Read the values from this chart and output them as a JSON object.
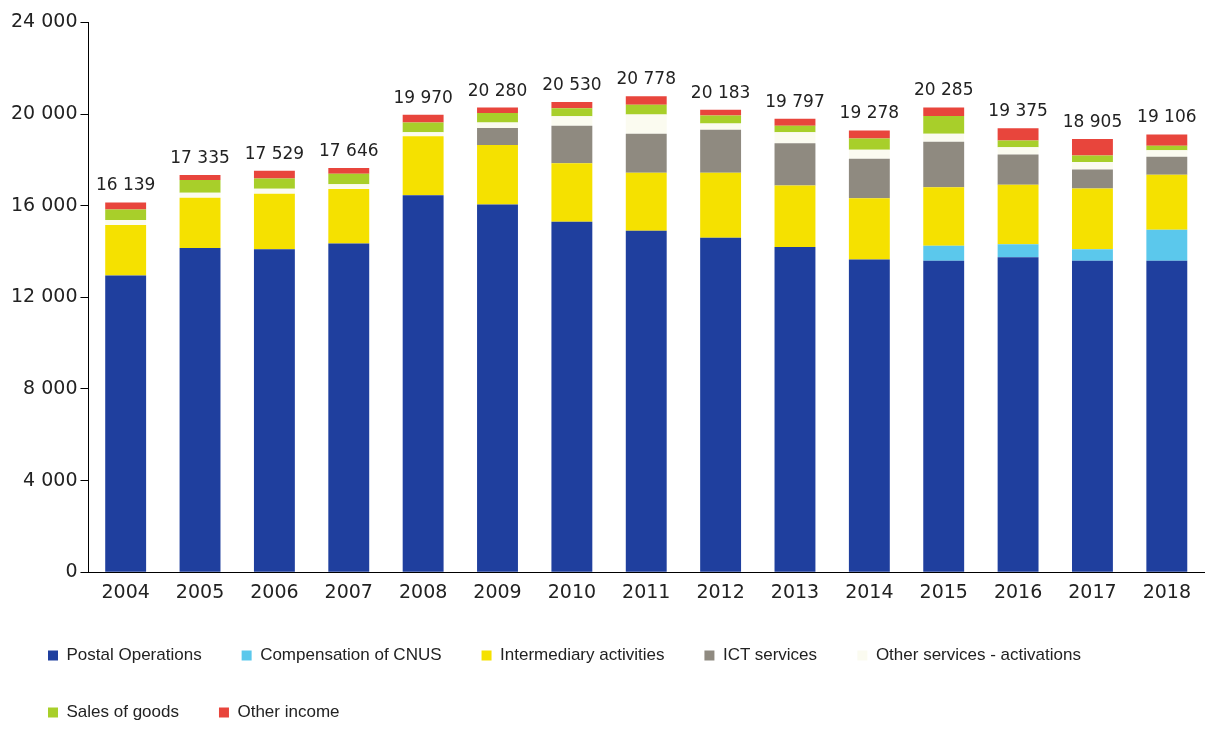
{
  "chart_data": {
    "type": "bar",
    "stacked": true,
    "categories": [
      "2004",
      "2005",
      "2006",
      "2007",
      "2008",
      "2009",
      "2010",
      "2011",
      "2012",
      "2013",
      "2014",
      "2015",
      "2016",
      "2017",
      "2018"
    ],
    "series": [
      {
        "name": "Postal Operations",
        "color": "#1f3f9e",
        "values": [
          12950,
          14150,
          14100,
          14350,
          16450,
          16050,
          15300,
          14900,
          14600,
          14200,
          13650,
          13600,
          13750,
          13600,
          13600
        ]
      },
      {
        "name": "Compensation of CNUS",
        "color": "#5bc8ec",
        "values": [
          0,
          0,
          0,
          0,
          0,
          0,
          0,
          0,
          0,
          0,
          0,
          650,
          570,
          500,
          1350
        ]
      },
      {
        "name": "Intermediary activities",
        "color": "#f5e100",
        "values": [
          2210,
          2200,
          2415,
          2375,
          2580,
          2600,
          2550,
          2540,
          2840,
          2680,
          2670,
          2550,
          2590,
          2650,
          2400
        ]
      },
      {
        "name": "ICT services",
        "color": "#8f8a80",
        "values": [
          0,
          0,
          0,
          0,
          0,
          740,
          1640,
          1700,
          1870,
          1840,
          1730,
          1990,
          1320,
          830,
          790
        ]
      },
      {
        "name": "Other services - activations",
        "color": "#fbfbf0",
        "values": [
          210,
          210,
          225,
          210,
          180,
          240,
          410,
          840,
          280,
          490,
          390,
          350,
          320,
          330,
          280
        ]
      },
      {
        "name": "Sales of goods",
        "color": "#a8cf2a",
        "values": [
          460,
          560,
          446,
          459,
          420,
          420,
          350,
          420,
          350,
          280,
          490,
          770,
          290,
          280,
          200
        ]
      },
      {
        "name": "Other income",
        "color": "#e8453c",
        "values": [
          309,
          215,
          343,
          252,
          340,
          230,
          280,
          378,
          243,
          307,
          348,
          375,
          535,
          715,
          486
        ]
      }
    ],
    "totals": [
      "16 139",
      "17 335",
      "17 529",
      "17 646",
      "19 970",
      "20 280",
      "20 530",
      "20 778",
      "20 183",
      "19 797",
      "19 278",
      "20 285",
      "19 375",
      "18 905",
      "19 106"
    ],
    "ylim": [
      0,
      24000
    ],
    "yticks": [
      {
        "value": 0,
        "label": "0"
      },
      {
        "value": 4000,
        "label": "4 000"
      },
      {
        "value": 8000,
        "label": "8 000"
      },
      {
        "value": 12000,
        "label": "12 000"
      },
      {
        "value": 16000,
        "label": "16 000"
      },
      {
        "value": 20000,
        "label": "20 000"
      },
      {
        "value": 24000,
        "label": "24 000"
      }
    ],
    "grid": false,
    "legend": "bottom"
  }
}
